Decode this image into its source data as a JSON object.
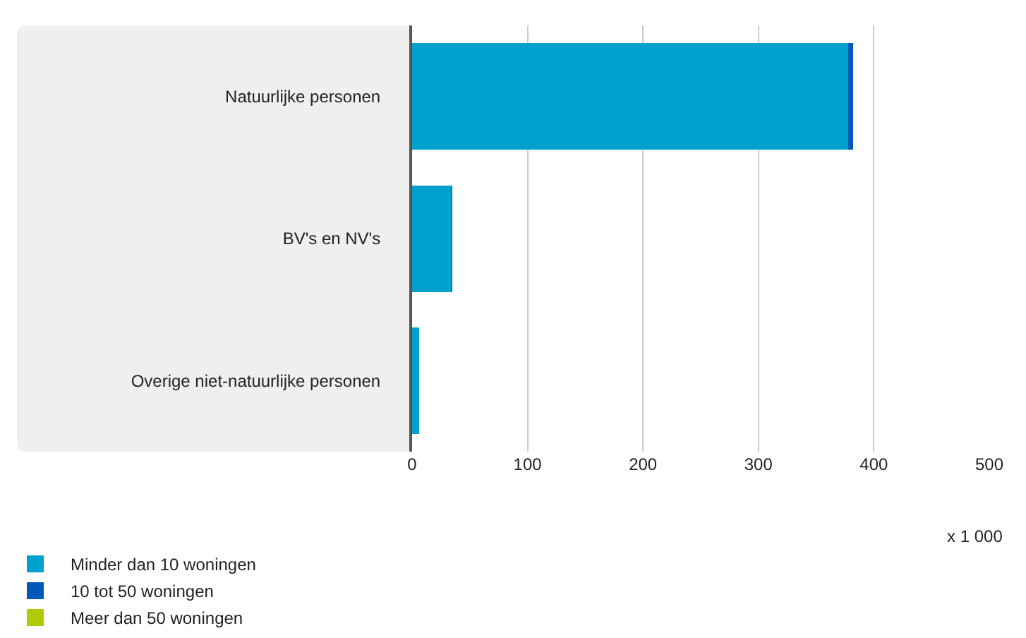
{
  "chart_data": {
    "type": "bar",
    "orientation": "horizontal",
    "stacked": true,
    "categories": [
      "Natuurlijke personen",
      "BV's en NV's",
      "Overige niet-natuurlijke personen"
    ],
    "series": [
      {
        "name": "Minder dan 10 woningen",
        "color": "#00a1cd",
        "values": [
          378,
          34,
          6
        ]
      },
      {
        "name": "10 tot 50 woningen",
        "color": "#0058b8",
        "values": [
          4,
          1,
          0
        ]
      },
      {
        "name": "Meer dan 50 woningen",
        "color": "#afcb05",
        "values": [
          0,
          0,
          0
        ]
      }
    ],
    "xlim": [
      0,
      500
    ],
    "xticks": [
      0,
      100,
      200,
      300,
      400,
      500
    ],
    "annotations": [
      "x 1 000"
    ],
    "grid": "x",
    "legend": "bottom"
  }
}
